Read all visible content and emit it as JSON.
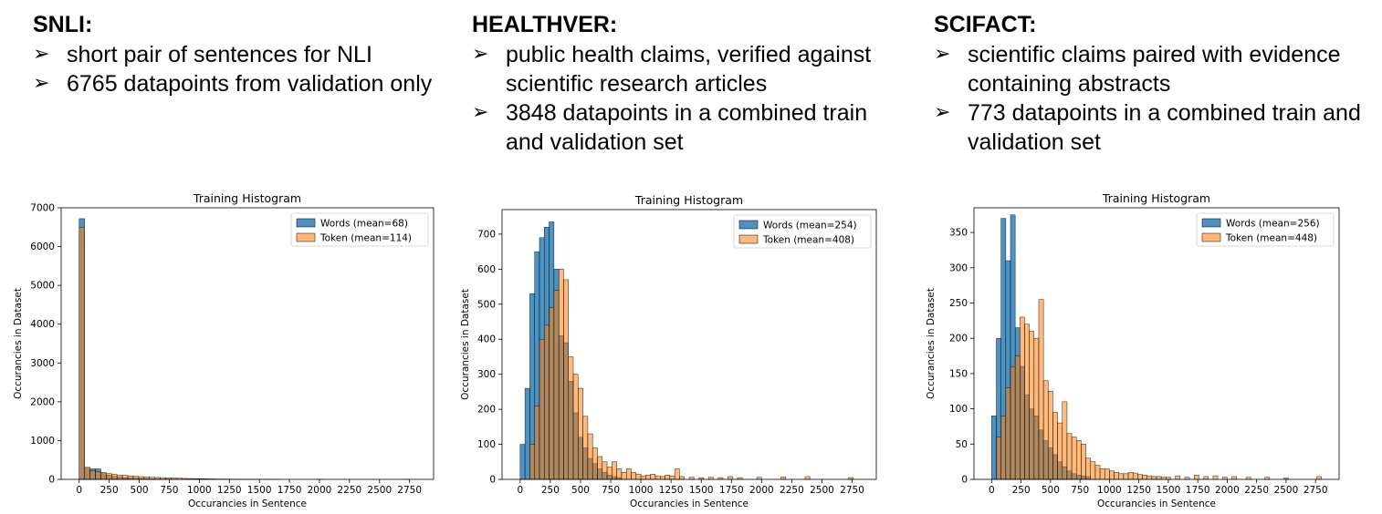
{
  "panels": [
    {
      "heading": "SNLI:",
      "bullets": [
        "short pair of sentences for NLI",
        "6765 datapoints from validation only"
      ]
    },
    {
      "heading": "HEALTHVER:",
      "bullets": [
        "public health claims, verified against scientific research articles",
        "3848 datapoints in a combined train and validation set"
      ]
    },
    {
      "heading": "SCIFACT:",
      "bullets": [
        "scientific claims paired with evidence containing abstracts",
        "773 datapoints in a combined train and validation set"
      ]
    }
  ],
  "bullet_icon": "arrow-bullet-icon",
  "colors": {
    "words": "#1f77b4",
    "token": "#ff7f0e"
  },
  "chart_data": [
    {
      "type": "bar",
      "title": "Training Histogram",
      "xlabel": "Occurancies in Sentence",
      "ylabel": "Occurancies in Dataset",
      "xlim": [
        -150,
        2950
      ],
      "ylim": [
        0,
        7000
      ],
      "xticks": [
        0,
        250,
        500,
        750,
        1000,
        1250,
        1500,
        1750,
        2000,
        2250,
        2500,
        2750
      ],
      "yticks": [
        0,
        1000,
        2000,
        3000,
        4000,
        5000,
        6000,
        7000
      ],
      "legend_position": "top-right",
      "series": [
        {
          "name": "Words (mean=68)",
          "bin_width": 45,
          "bins": [
            [
              0,
              6720
            ],
            [
              45,
              290
            ],
            [
              90,
              270
            ],
            [
              135,
              270
            ],
            [
              180,
              150
            ],
            [
              225,
              110
            ],
            [
              270,
              80
            ],
            [
              315,
              60
            ],
            [
              360,
              45
            ],
            [
              405,
              35
            ],
            [
              450,
              30
            ],
            [
              495,
              25
            ],
            [
              540,
              20
            ],
            [
              585,
              15
            ],
            [
              630,
              12
            ],
            [
              675,
              10
            ],
            [
              720,
              8
            ],
            [
              765,
              6
            ],
            [
              810,
              5
            ],
            [
              855,
              4
            ],
            [
              900,
              3
            ],
            [
              945,
              3
            ],
            [
              990,
              2
            ],
            [
              1035,
              2
            ],
            [
              1080,
              1
            ]
          ]
        },
        {
          "name": "Token (mean=114)",
          "bin_width": 45,
          "bins": [
            [
              0,
              6500
            ],
            [
              45,
              310
            ],
            [
              90,
              220
            ],
            [
              135,
              200
            ],
            [
              180,
              180
            ],
            [
              225,
              150
            ],
            [
              270,
              130
            ],
            [
              315,
              110
            ],
            [
              360,
              100
            ],
            [
              405,
              90
            ],
            [
              450,
              80
            ],
            [
              495,
              70
            ],
            [
              540,
              65
            ],
            [
              585,
              55
            ],
            [
              630,
              50
            ],
            [
              675,
              45
            ],
            [
              720,
              40
            ],
            [
              765,
              35
            ],
            [
              810,
              30
            ],
            [
              855,
              25
            ],
            [
              900,
              22
            ],
            [
              945,
              20
            ],
            [
              990,
              18
            ],
            [
              1035,
              15
            ],
            [
              1080,
              12
            ],
            [
              1125,
              10
            ],
            [
              1170,
              9
            ],
            [
              1215,
              8
            ],
            [
              1260,
              7
            ],
            [
              1305,
              6
            ],
            [
              1350,
              5
            ],
            [
              1395,
              4
            ],
            [
              1440,
              4
            ],
            [
              1485,
              3
            ],
            [
              1530,
              3
            ],
            [
              1575,
              2
            ],
            [
              1620,
              2
            ],
            [
              1980,
              5
            ],
            [
              2700,
              2
            ]
          ]
        }
      ]
    },
    {
      "type": "bar",
      "title": "Training Histogram",
      "xlabel": "Occurancies in Sentence",
      "ylabel": "Occurancies in Dataset",
      "xlim": [
        -150,
        2950
      ],
      "ylim": [
        0,
        770
      ],
      "xticks": [
        0,
        250,
        500,
        750,
        1000,
        1250,
        1500,
        1750,
        2000,
        2250,
        2500,
        2750
      ],
      "yticks": [
        0,
        100,
        200,
        300,
        400,
        500,
        600,
        700
      ],
      "legend_position": "top-right",
      "series": [
        {
          "name": "Words (mean=254)",
          "bin_width": 40,
          "bins": [
            [
              0,
              100
            ],
            [
              40,
              260
            ],
            [
              80,
              530
            ],
            [
              120,
              650
            ],
            [
              160,
              690
            ],
            [
              200,
              720
            ],
            [
              240,
              735
            ],
            [
              280,
              600
            ],
            [
              320,
              410
            ],
            [
              360,
              390
            ],
            [
              400,
              280
            ],
            [
              440,
              190
            ],
            [
              480,
              120
            ],
            [
              520,
              90
            ],
            [
              560,
              60
            ],
            [
              600,
              45
            ],
            [
              640,
              30
            ],
            [
              680,
              20
            ],
            [
              720,
              12
            ],
            [
              760,
              8
            ],
            [
              800,
              5
            ]
          ]
        },
        {
          "name": "Token (mean=408)",
          "bin_width": 40,
          "bins": [
            [
              80,
              100
            ],
            [
              120,
              210
            ],
            [
              160,
              400
            ],
            [
              200,
              440
            ],
            [
              240,
              490
            ],
            [
              280,
              540
            ],
            [
              320,
              600
            ],
            [
              360,
              570
            ],
            [
              400,
              350
            ],
            [
              440,
              300
            ],
            [
              480,
              260
            ],
            [
              520,
              180
            ],
            [
              560,
              130
            ],
            [
              600,
              90
            ],
            [
              640,
              65
            ],
            [
              680,
              50
            ],
            [
              720,
              35
            ],
            [
              760,
              50
            ],
            [
              800,
              30
            ],
            [
              840,
              20
            ],
            [
              880,
              30
            ],
            [
              920,
              20
            ],
            [
              960,
              15
            ],
            [
              1000,
              10
            ],
            [
              1040,
              12
            ],
            [
              1080,
              15
            ],
            [
              1120,
              10
            ],
            [
              1160,
              8
            ],
            [
              1200,
              12
            ],
            [
              1240,
              10
            ],
            [
              1280,
              30
            ],
            [
              1320,
              8
            ],
            [
              1400,
              6
            ],
            [
              1480,
              5
            ],
            [
              1560,
              6
            ],
            [
              1640,
              5
            ],
            [
              1720,
              8
            ],
            [
              1800,
              5
            ],
            [
              1960,
              6
            ],
            [
              2160,
              7
            ],
            [
              2360,
              8
            ],
            [
              2720,
              5
            ]
          ]
        }
      ]
    },
    {
      "type": "bar",
      "title": "Training Histogram",
      "xlabel": "Occurancies in Sentence",
      "ylabel": "Occurancies in Dataset",
      "xlim": [
        -150,
        2950
      ],
      "ylim": [
        0,
        385
      ],
      "xticks": [
        0,
        250,
        500,
        750,
        1000,
        1250,
        1500,
        1750,
        2000,
        2250,
        2500,
        2750
      ],
      "yticks": [
        0,
        50,
        100,
        150,
        200,
        250,
        300,
        350
      ],
      "legend_position": "top-right",
      "series": [
        {
          "name": "Words (mean=256)",
          "bin_width": 40,
          "bins": [
            [
              0,
              90
            ],
            [
              40,
              200
            ],
            [
              80,
              370
            ],
            [
              120,
              310
            ],
            [
              160,
              375
            ],
            [
              200,
              215
            ],
            [
              240,
              160
            ],
            [
              280,
              120
            ],
            [
              320,
              100
            ],
            [
              360,
              90
            ],
            [
              400,
              70
            ],
            [
              440,
              55
            ],
            [
              480,
              45
            ],
            [
              520,
              35
            ],
            [
              560,
              25
            ],
            [
              600,
              18
            ],
            [
              640,
              12
            ],
            [
              680,
              8
            ],
            [
              720,
              6
            ],
            [
              760,
              5
            ],
            [
              800,
              4
            ]
          ]
        },
        {
          "name": "Token (mean=448)",
          "bin_width": 40,
          "bins": [
            [
              40,
              60
            ],
            [
              80,
              90
            ],
            [
              120,
              130
            ],
            [
              160,
              160
            ],
            [
              200,
              175
            ],
            [
              240,
              230
            ],
            [
              280,
              220
            ],
            [
              320,
              210
            ],
            [
              360,
              200
            ],
            [
              400,
              255
            ],
            [
              440,
              140
            ],
            [
              480,
              125
            ],
            [
              520,
              95
            ],
            [
              560,
              80
            ],
            [
              600,
              110
            ],
            [
              640,
              65
            ],
            [
              680,
              60
            ],
            [
              720,
              55
            ],
            [
              760,
              50
            ],
            [
              800,
              30
            ],
            [
              840,
              25
            ],
            [
              880,
              20
            ],
            [
              920,
              15
            ],
            [
              960,
              15
            ],
            [
              1000,
              12
            ],
            [
              1040,
              10
            ],
            [
              1080,
              8
            ],
            [
              1120,
              8
            ],
            [
              1160,
              10
            ],
            [
              1200,
              9
            ],
            [
              1240,
              7
            ],
            [
              1280,
              6
            ],
            [
              1320,
              5
            ],
            [
              1360,
              4
            ],
            [
              1400,
              4
            ],
            [
              1440,
              3
            ],
            [
              1480,
              3
            ],
            [
              1560,
              5
            ],
            [
              1640,
              3
            ],
            [
              1720,
              6
            ],
            [
              1800,
              4
            ],
            [
              1880,
              5
            ],
            [
              1960,
              3
            ],
            [
              2040,
              4
            ],
            [
              2160,
              3
            ],
            [
              2320,
              3
            ],
            [
              2480,
              2
            ],
            [
              2760,
              4
            ]
          ]
        }
      ]
    }
  ]
}
